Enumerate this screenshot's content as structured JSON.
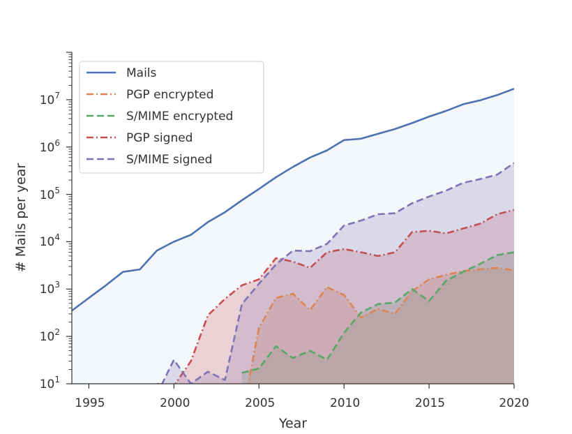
{
  "chart_data": {
    "type": "line",
    "xlabel": "Year",
    "ylabel": "# Mails per year",
    "xlim": [
      1994,
      2020
    ],
    "ylim": [
      10,
      100000000
    ],
    "y_scale": "log",
    "x_ticks": [
      "1995",
      "2000",
      "2005",
      "2010",
      "2015",
      "2020"
    ],
    "y_ticks": [
      "10",
      "10",
      "10",
      "10",
      "10",
      "10",
      "10"
    ],
    "y_tick_exponents": [
      "1",
      "2",
      "3",
      "4",
      "5",
      "6",
      "7"
    ],
    "legend_position": "top-left",
    "fill_under_series": true,
    "series": [
      {
        "name": "Mails",
        "color": "#4c72b0",
        "style": "solid",
        "x": [
          1994,
          1995,
          1996,
          1997,
          1998,
          1999,
          2000,
          2001,
          2002,
          2003,
          2004,
          2005,
          2006,
          2007,
          2008,
          2009,
          2010,
          2011,
          2012,
          2013,
          2014,
          2015,
          2016,
          2017,
          2018,
          2019,
          2020
        ],
        "values": [
          350,
          650,
          1200,
          2300,
          2600,
          6500,
          10000,
          14000,
          26000,
          42000,
          75000,
          130000,
          230000,
          380000,
          600000,
          850000,
          1400000,
          1500000,
          1900000,
          2400000,
          3200000,
          4400000,
          5800000,
          8000000,
          9700000,
          12500000,
          17000000
        ]
      },
      {
        "name": "PGP encrypted",
        "color": "#dd8452",
        "style": "dashdot",
        "x": [
          2004,
          2005,
          2006,
          2007,
          2008,
          2009,
          2010,
          2011,
          2012,
          2013,
          2014,
          2015,
          2016,
          2017,
          2018,
          2019,
          2020
        ],
        "values": [
          2,
          150,
          650,
          800,
          360,
          1100,
          750,
          250,
          380,
          300,
          900,
          1600,
          2000,
          2400,
          2600,
          2800,
          2500
        ]
      },
      {
        "name": "S/MIME encrypted",
        "color": "#55a868",
        "style": "dashed",
        "x": [
          2004,
          2005,
          2006,
          2007,
          2008,
          2009,
          2010,
          2011,
          2012,
          2013,
          2014,
          2015,
          2016,
          2017,
          2018,
          2019,
          2020
        ],
        "values": [
          17,
          21,
          62,
          35,
          50,
          32,
          120,
          320,
          480,
          520,
          1000,
          560,
          1500,
          2300,
          3400,
          5200,
          6000
        ]
      },
      {
        "name": "PGP signed",
        "color": "#c44e52",
        "style": "dashdot",
        "x": [
          1999,
          2000,
          2001,
          2002,
          2003,
          2004,
          2005,
          2006,
          2007,
          2008,
          2009,
          2010,
          2011,
          2012,
          2013,
          2014,
          2015,
          2016,
          2017,
          2018,
          2019,
          2020
        ],
        "values": [
          10,
          9,
          30,
          280,
          620,
          1200,
          1600,
          4500,
          3800,
          2800,
          6000,
          7000,
          6000,
          5000,
          6000,
          16000,
          17000,
          15000,
          19000,
          24000,
          38000,
          47000
        ]
      },
      {
        "name": "S/MIME signed",
        "color": "#8172b3",
        "style": "dashed",
        "x": [
          1999,
          2000,
          2001,
          2002,
          2003,
          2004,
          2005,
          2006,
          2007,
          2008,
          2009,
          2010,
          2011,
          2012,
          2013,
          2014,
          2015,
          2016,
          2017,
          2018,
          2019,
          2020
        ],
        "values": [
          6,
          32,
          10,
          18,
          12,
          480,
          1300,
          3300,
          6500,
          6300,
          9000,
          22000,
          28000,
          38000,
          40000,
          65000,
          90000,
          120000,
          175000,
          210000,
          260000,
          460000
        ]
      }
    ]
  }
}
